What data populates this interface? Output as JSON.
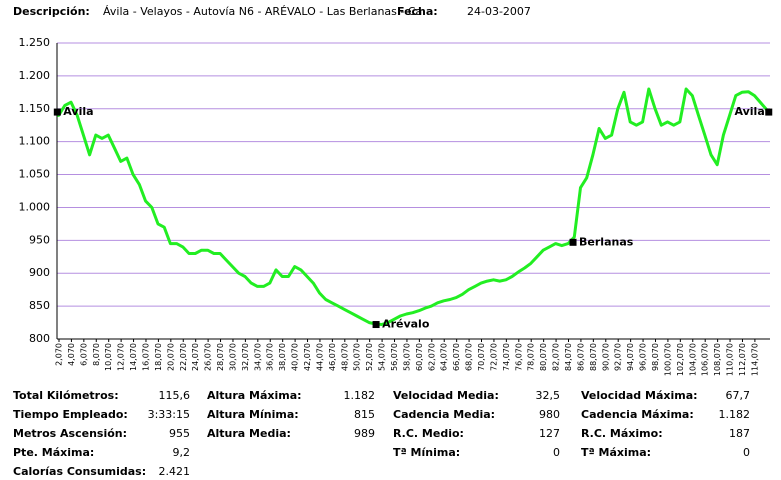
{
  "header": {
    "desc_label": "Descripción:",
    "desc": "Ávila - Velayos - Autovía N6 - ARÉVALO - Las Berlanas - Ca",
    "date_label": "Fecha:",
    "date": "24-03-2007"
  },
  "chart_data": {
    "type": "line",
    "color": "#22ee22",
    "grid": true,
    "x": [
      1.8,
      2,
      3,
      4,
      5,
      6,
      7,
      8,
      9,
      10,
      11,
      12,
      13,
      14,
      15,
      16,
      17,
      18,
      19,
      20,
      21,
      22,
      23,
      24,
      25,
      26,
      27,
      28,
      29,
      30,
      31,
      32,
      33,
      34,
      35,
      36,
      37,
      38,
      39,
      40,
      41,
      42,
      43,
      44,
      45,
      46,
      47,
      48,
      49,
      50,
      51,
      52,
      53,
      54,
      55,
      56,
      57,
      58,
      59,
      60,
      61,
      62,
      63,
      64,
      65,
      66,
      67,
      68,
      69,
      70,
      71,
      72,
      73,
      74,
      75,
      76,
      77,
      78,
      79,
      80,
      81,
      82,
      83,
      84,
      85,
      86,
      87,
      88,
      89,
      90,
      91,
      92,
      93,
      94,
      95,
      96,
      97,
      98,
      99,
      100,
      101,
      102,
      103,
      104,
      105,
      106,
      107,
      108,
      109,
      110,
      111,
      112,
      113,
      114,
      116.3
    ],
    "values": [
      1140,
      1140,
      1155,
      1160,
      1140,
      1110,
      1080,
      1110,
      1105,
      1110,
      1090,
      1070,
      1075,
      1050,
      1035,
      1010,
      1000,
      975,
      970,
      945,
      945,
      940,
      930,
      930,
      935,
      935,
      930,
      930,
      920,
      910,
      900,
      895,
      885,
      880,
      880,
      885,
      905,
      895,
      895,
      910,
      905,
      895,
      885,
      870,
      860,
      855,
      850,
      845,
      840,
      835,
      830,
      825,
      823,
      822,
      825,
      830,
      835,
      838,
      840,
      843,
      847,
      850,
      855,
      858,
      860,
      863,
      868,
      875,
      880,
      885,
      888,
      890,
      888,
      890,
      895,
      902,
      908,
      915,
      925,
      935,
      940,
      945,
      942,
      945,
      955,
      1030,
      1045,
      1080,
      1120,
      1105,
      1110,
      1150,
      1175,
      1130,
      1125,
      1130,
      1180,
      1150,
      1125,
      1130,
      1125,
      1130,
      1180,
      1170,
      1140,
      1110,
      1080,
      1065,
      1110,
      1140,
      1170,
      1175,
      1176,
      1170,
      1145
    ],
    "xlim": [
      1.75,
      116.5
    ],
    "ylim": [
      800,
      1250
    ],
    "yticks": [
      800,
      850,
      900,
      950,
      {
        "value": 1000,
        "label": "1.000"
      },
      {
        "value": 1050,
        "label": "1.050"
      },
      {
        "value": 1100,
        "label": "1.100"
      },
      {
        "value": 1150,
        "label": "1.150"
      },
      {
        "value": 1200,
        "label": "1.200"
      },
      {
        "value": 1250,
        "label": "1.250"
      }
    ],
    "xticks": [
      {
        "value": 2.07,
        "label": "2,070"
      },
      {
        "value": 4.07,
        "label": "4,070"
      },
      {
        "value": 6.07,
        "label": "6,070"
      },
      {
        "value": 8.07,
        "label": "8,070"
      },
      {
        "value": 10.07,
        "label": "10,070"
      },
      {
        "value": 12.07,
        "label": "12,070"
      },
      {
        "value": 14.07,
        "label": "14,070"
      },
      {
        "value": 16.07,
        "label": "16,070"
      },
      {
        "value": 18.07,
        "label": "18,070"
      },
      {
        "value": 20.07,
        "label": "20,070"
      },
      {
        "value": 22.07,
        "label": "22,070"
      },
      {
        "value": 24.07,
        "label": "24,070"
      },
      {
        "value": 26.07,
        "label": "26,070"
      },
      {
        "value": 28.07,
        "label": "28,070"
      },
      {
        "value": 30.07,
        "label": "30,070"
      },
      {
        "value": 32.07,
        "label": "32,070"
      },
      {
        "value": 34.07,
        "label": "34,070"
      },
      {
        "value": 36.07,
        "label": "36,070"
      },
      {
        "value": 38.07,
        "label": "38,070"
      },
      {
        "value": 40.07,
        "label": "40,070"
      },
      {
        "value": 42.07,
        "label": "42,070"
      },
      {
        "value": 44.07,
        "label": "44,070"
      },
      {
        "value": 46.07,
        "label": "46,070"
      },
      {
        "value": 48.07,
        "label": "48,070"
      },
      {
        "value": 50.07,
        "label": "50,070"
      },
      {
        "value": 52.07,
        "label": "52,070"
      },
      {
        "value": 54.07,
        "label": "54,070"
      },
      {
        "value": 56.07,
        "label": "56,070"
      },
      {
        "value": 58.07,
        "label": "58,070"
      },
      {
        "value": 60.07,
        "label": "60,070"
      },
      {
        "value": 62.07,
        "label": "62,070"
      },
      {
        "value": 64.07,
        "label": "64,070"
      },
      {
        "value": 66.07,
        "label": "66,070"
      },
      {
        "value": 68.07,
        "label": "68,070"
      },
      {
        "value": 70.07,
        "label": "70,070"
      },
      {
        "value": 72.07,
        "label": "72,070"
      },
      {
        "value": 74.07,
        "label": "74,070"
      },
      {
        "value": 76.07,
        "label": "76,070"
      },
      {
        "value": 78.07,
        "label": "78,070"
      },
      {
        "value": 80.07,
        "label": "80,070"
      },
      {
        "value": 82.07,
        "label": "82,070"
      },
      {
        "value": 84.07,
        "label": "84,070"
      },
      {
        "value": 86.07,
        "label": "86,070"
      },
      {
        "value": 88.07,
        "label": "88,070"
      },
      {
        "value": 90.07,
        "label": "90,070"
      },
      {
        "value": 92.07,
        "label": "92,070"
      },
      {
        "value": 94.07,
        "label": "94,070"
      },
      {
        "value": 96.07,
        "label": "96,070"
      },
      {
        "value": 98.07,
        "label": "98,070"
      },
      {
        "value": 100.07,
        "label": "100,070"
      },
      {
        "value": 102.07,
        "label": "102,070"
      },
      {
        "value": 104.07,
        "label": "104,070"
      },
      {
        "value": 106.07,
        "label": "106,070"
      },
      {
        "value": 108.07,
        "label": "108,070"
      },
      {
        "value": 110.07,
        "label": "110,070"
      },
      {
        "value": 112.07,
        "label": "112,070"
      },
      {
        "value": 114.07,
        "label": "114,070"
      }
    ],
    "markers": [
      {
        "label": "Avila",
        "x": 1.8,
        "y": 1145
      },
      {
        "label": "Arévalo",
        "x": 53.1,
        "y": 822
      },
      {
        "label": "Berlanas",
        "x": 84.8,
        "y": 947
      },
      {
        "label": "Avila",
        "x": 116.3,
        "y": 1145
      }
    ]
  },
  "stats": [
    [
      {
        "label": "Total Kilómetros:",
        "value": "115,6"
      },
      {
        "label": "Tiempo Empleado:",
        "value": "3:33:15"
      },
      {
        "label": "Metros Ascensión:",
        "value": "955"
      },
      {
        "label": "Pte. Máxima:",
        "value": "9,2"
      },
      {
        "label": "Calorías Consumidas:",
        "value": "2.421"
      }
    ],
    [
      {
        "label": "Altura Máxima:",
        "value": "1.182"
      },
      {
        "label": "Altura Mínima:",
        "value": "815"
      },
      {
        "label": "Altura Media:",
        "value": "989"
      }
    ],
    [
      {
        "label": "Velocidad Media:",
        "value": "32,5"
      },
      {
        "label": "Cadencia Media:",
        "value": "980"
      },
      {
        "label": "R.C. Medio:",
        "value": "127"
      },
      {
        "label": "Tª Mínima:",
        "value": "0"
      }
    ],
    [
      {
        "label": "Velocidad Máxima:",
        "value": "67,7"
      },
      {
        "label": "Cadencia Máxima:",
        "value": "1.182"
      },
      {
        "label": "R.C.  Máximo:",
        "value": "187"
      },
      {
        "label": "Tª Máxima:",
        "value": "0"
      }
    ]
  ]
}
